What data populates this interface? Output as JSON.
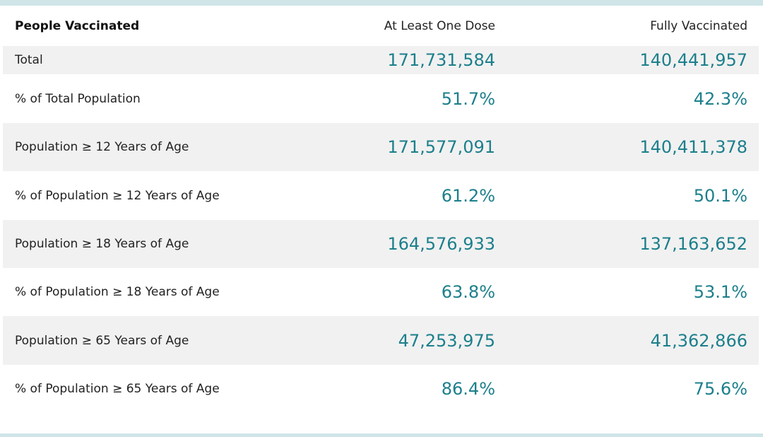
{
  "colors": {
    "rule": "#cfe5e8",
    "value": "#1c7f8c",
    "shaded_row": "#f1f1f1"
  },
  "header": {
    "label": "People Vaccinated",
    "col1": "At Least One Dose",
    "col2": "Fully Vaccinated"
  },
  "rows": [
    {
      "label": "Total",
      "col1": "171,731,584",
      "col2": "140,441,957"
    },
    {
      "label": "% of Total Population",
      "col1": "51.7%",
      "col2": "42.3%"
    },
    {
      "label": "Population ≥ 12 Years of Age",
      "col1": "171,577,091",
      "col2": "140,411,378"
    },
    {
      "label": "% of Population ≥ 12 Years of Age",
      "col1": "61.2%",
      "col2": "50.1%"
    },
    {
      "label": "Population ≥ 18 Years of Age",
      "col1": "164,576,933",
      "col2": "137,163,652"
    },
    {
      "label": "% of Population ≥ 18 Years of Age",
      "col1": "63.8%",
      "col2": "53.1%"
    },
    {
      "label": "Population ≥ 65 Years of Age",
      "col1": "47,253,975",
      "col2": "41,362,866"
    },
    {
      "label": "% of Population ≥ 65 Years of Age",
      "col1": "86.4%",
      "col2": "75.6%"
    }
  ]
}
